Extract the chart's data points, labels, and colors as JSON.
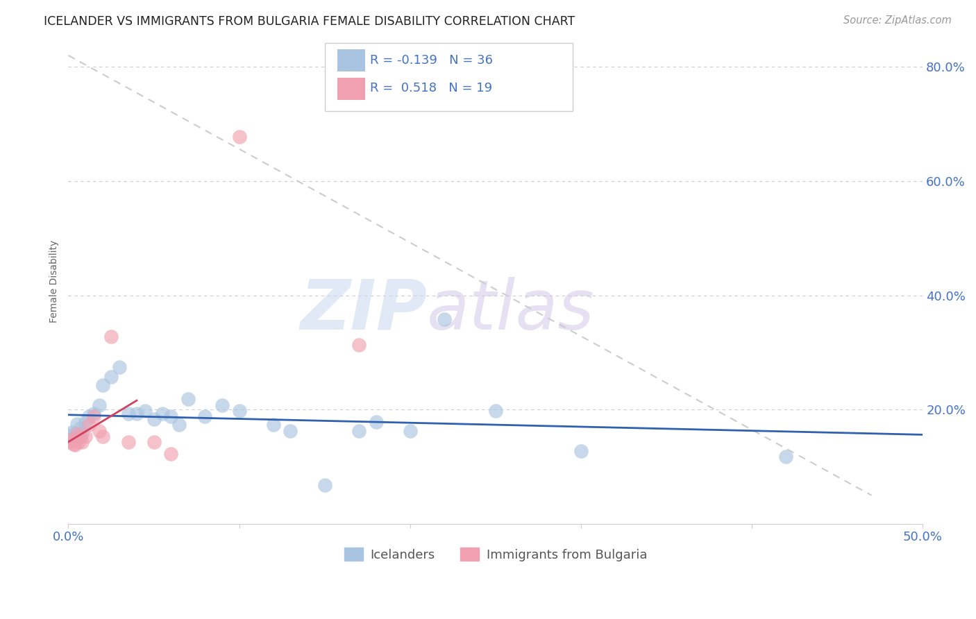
{
  "title": "ICELANDER VS IMMIGRANTS FROM BULGARIA FEMALE DISABILITY CORRELATION CHART",
  "source": "Source: ZipAtlas.com",
  "ylabel": "Female Disability",
  "xlim": [
    0.0,
    0.5
  ],
  "ylim": [
    0.0,
    0.85
  ],
  "grid_color": "#cccccc",
  "background_color": "#ffffff",
  "icelanders_color": "#a8c4e0",
  "immigrants_color": "#f0a0b0",
  "icelanders_line_color": "#3060b0",
  "immigrants_line_color": "#d04060",
  "diagonal_line_color": "#cccccc",
  "R_icelanders": -0.139,
  "N_icelanders": 36,
  "R_immigrants": 0.518,
  "N_immigrants": 19,
  "legend_label_icelanders": "Icelanders",
  "legend_label_immigrants": "Immigrants from Bulgaria",
  "watermark_zip": "ZIP",
  "watermark_atlas": "atlas",
  "tick_color": "#4472c4",
  "icelanders_x": [
    0.001,
    0.002,
    0.003,
    0.004,
    0.005,
    0.006,
    0.007,
    0.008,
    0.01,
    0.012,
    0.015,
    0.018,
    0.02,
    0.025,
    0.03,
    0.035,
    0.04,
    0.045,
    0.05,
    0.055,
    0.06,
    0.065,
    0.07,
    0.08,
    0.09,
    0.1,
    0.12,
    0.13,
    0.15,
    0.17,
    0.18,
    0.2,
    0.22,
    0.25,
    0.3,
    0.42
  ],
  "icelanders_y": [
    0.155,
    0.16,
    0.155,
    0.15,
    0.175,
    0.155,
    0.168,
    0.158,
    0.178,
    0.188,
    0.193,
    0.208,
    0.243,
    0.258,
    0.275,
    0.193,
    0.193,
    0.198,
    0.183,
    0.193,
    0.188,
    0.173,
    0.218,
    0.188,
    0.208,
    0.198,
    0.173,
    0.163,
    0.068,
    0.163,
    0.178,
    0.163,
    0.358,
    0.198,
    0.128,
    0.118
  ],
  "immigrants_x": [
    0.001,
    0.002,
    0.003,
    0.004,
    0.005,
    0.006,
    0.007,
    0.008,
    0.01,
    0.012,
    0.015,
    0.018,
    0.02,
    0.025,
    0.035,
    0.05,
    0.06,
    0.1,
    0.17
  ],
  "immigrants_y": [
    0.143,
    0.148,
    0.14,
    0.138,
    0.158,
    0.143,
    0.153,
    0.143,
    0.153,
    0.173,
    0.188,
    0.163,
    0.153,
    0.328,
    0.143,
    0.143,
    0.123,
    0.678,
    0.313
  ]
}
